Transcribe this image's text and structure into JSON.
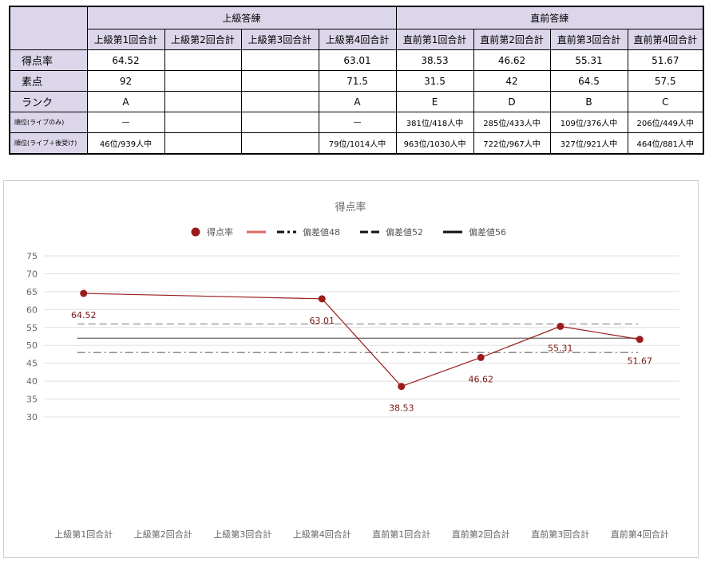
{
  "table": {
    "groups": [
      "上級答練",
      "直前答練"
    ],
    "columns": [
      "上級第1回合計",
      "上級第2回合計",
      "上級第3回合計",
      "上級第4回合計",
      "直前第1回合計",
      "直前第2回合計",
      "直前第3回合計",
      "直前第4回合計"
    ],
    "rows": [
      {
        "label": "得点率",
        "small": false,
        "values": [
          "64.52",
          "",
          "",
          "63.01",
          "38.53",
          "46.62",
          "55.31",
          "51.67"
        ]
      },
      {
        "label": "素点",
        "small": false,
        "values": [
          "92",
          "",
          "",
          "71.5",
          "31.5",
          "42",
          "64.5",
          "57.5"
        ]
      },
      {
        "label": "ランク",
        "small": false,
        "values": [
          "A",
          "",
          "",
          "A",
          "E",
          "D",
          "B",
          "C"
        ]
      },
      {
        "label": "順位(ライブのみ)",
        "small": true,
        "values": [
          "—",
          "",
          "",
          "—",
          "381位/418人中",
          "285位/433人中",
          "109位/376人中",
          "206位/449人中"
        ]
      },
      {
        "label": "順位(ライブ＋後受け)",
        "small": true,
        "values": [
          "46位/939人中",
          "",
          "",
          "79位/1014人中",
          "963位/1030人中",
          "722位/967人中",
          "327位/921人中",
          "464位/881人中"
        ]
      }
    ]
  },
  "chart_data": {
    "type": "line",
    "title": "得点率",
    "categories": [
      "上級第1回合計",
      "上級第2回合計",
      "上級第3回合計",
      "上級第4回合計",
      "直前第1回合計",
      "直前第2回合計",
      "直前第3回合計",
      "直前第4回合計"
    ],
    "series": [
      {
        "name": "得点率",
        "color": "#9b1b1b",
        "values": [
          64.52,
          null,
          null,
          63.01,
          38.53,
          46.62,
          55.31,
          51.67
        ],
        "labels": [
          "64.52",
          "",
          "",
          "63.01",
          "38.53",
          "46.62",
          "55.31",
          "51.67"
        ]
      }
    ],
    "legend_extra": [
      {
        "name": "",
        "color": "#e06666",
        "dash": "solid"
      },
      {
        "name": "偏差値48",
        "color": "#111111",
        "dash": "dashdot"
      },
      {
        "name": "偏差値52",
        "color": "#111111",
        "dash": "dashed"
      },
      {
        "name": "偏差値56",
        "color": "#111111",
        "dash": "long"
      }
    ],
    "reference_lines": [
      {
        "name": "偏差値48",
        "value": 48,
        "color": "#666666",
        "dash": "dashdot"
      },
      {
        "name": "偏差値52",
        "value": 52,
        "color": "#666666",
        "dash": "solid"
      },
      {
        "name": "偏差値56",
        "value": 56,
        "color": "#888888",
        "dash": "dashed"
      }
    ],
    "yticks": [
      30,
      35,
      40,
      45,
      50,
      55,
      60,
      65,
      70,
      75
    ],
    "ylim": [
      30,
      75
    ],
    "grid": true,
    "legend_position": "top"
  }
}
